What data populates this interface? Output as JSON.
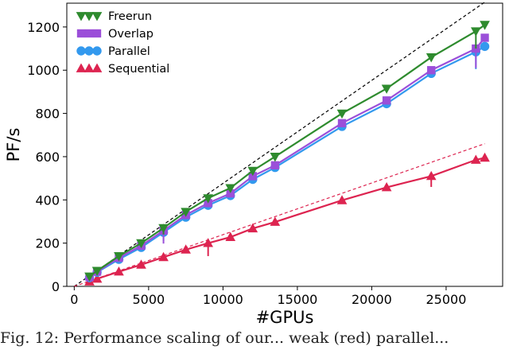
{
  "chart_data": {
    "type": "line",
    "xlabel": "#GPUs",
    "ylabel": "PF/s",
    "xlim": [
      -500,
      28800
    ],
    "ylim": [
      0,
      1310
    ],
    "x_ticks": [
      0,
      5000,
      10000,
      15000,
      20000,
      25000
    ],
    "y_ticks": [
      0,
      200,
      400,
      600,
      800,
      1000,
      1200
    ],
    "x_tick_labels": [
      "0",
      "5000",
      "10000",
      "15000",
      "20000",
      "25000"
    ],
    "y_tick_labels": [
      "0",
      "200",
      "400",
      "600",
      "800",
      "1000",
      "1200"
    ],
    "legend_position": "top-left",
    "series": [
      {
        "name": "Freerun",
        "color": "#2e8b2e",
        "marker": "triangle-down",
        "x": [
          1024,
          1536,
          3000,
          4500,
          6000,
          7500,
          9000,
          10500,
          12000,
          13500,
          18000,
          21000,
          24000,
          27000,
          27600
        ],
        "y": [
          46,
          72,
          140,
          200,
          270,
          345,
          408,
          455,
          535,
          600,
          800,
          915,
          1060,
          1180,
          1210
        ],
        "err_low": [
          0,
          0,
          0,
          0,
          30,
          0,
          0,
          0,
          0,
          0,
          0,
          0,
          0,
          80,
          0
        ]
      },
      {
        "name": "Overlap",
        "color": "#9b4fd9",
        "marker": "square",
        "x": [
          1024,
          1536,
          3000,
          4500,
          6000,
          7500,
          9000,
          10500,
          12000,
          13500,
          18000,
          21000,
          24000,
          27000,
          27600
        ],
        "y": [
          43,
          68,
          132,
          188,
          258,
          330,
          385,
          430,
          510,
          560,
          755,
          860,
          1000,
          1100,
          1150
        ],
        "err_low": [
          0,
          0,
          0,
          0,
          60,
          0,
          0,
          0,
          0,
          0,
          0,
          0,
          0,
          90,
          0
        ]
      },
      {
        "name": "Parallel",
        "color": "#3399ee",
        "marker": "circle",
        "x": [
          1024,
          1536,
          3000,
          4500,
          6000,
          7500,
          9000,
          10500,
          12000,
          13500,
          18000,
          21000,
          24000,
          27000,
          27600
        ],
        "y": [
          40,
          65,
          125,
          180,
          250,
          320,
          375,
          420,
          495,
          550,
          740,
          845,
          985,
          1085,
          1110
        ],
        "err_low": [
          0,
          0,
          0,
          0,
          40,
          0,
          0,
          0,
          0,
          0,
          0,
          0,
          0,
          80,
          0
        ]
      },
      {
        "name": "Sequential",
        "color": "#dd2450",
        "marker": "triangle-up",
        "x": [
          1024,
          1536,
          3000,
          4500,
          6000,
          7500,
          9000,
          10500,
          12000,
          13500,
          18000,
          21000,
          24000,
          27000,
          27600
        ],
        "y": [
          22,
          35,
          68,
          100,
          135,
          170,
          200,
          228,
          268,
          298,
          398,
          458,
          510,
          585,
          595
        ],
        "err_low": [
          0,
          0,
          0,
          0,
          0,
          0,
          60,
          0,
          0,
          0,
          0,
          0,
          50,
          0,
          0
        ]
      }
    ],
    "reference_lines": [
      {
        "color": "#000000",
        "style": "dashed",
        "x": [
          0,
          27600
        ],
        "y": [
          0,
          1315
        ]
      },
      {
        "color": "#dd2450",
        "style": "dashed",
        "x": [
          0,
          27600
        ],
        "y": [
          0,
          660
        ]
      }
    ]
  },
  "caption": {
    "text": "Fig. 12: Performance scaling of our... weak (red) parallel..."
  }
}
